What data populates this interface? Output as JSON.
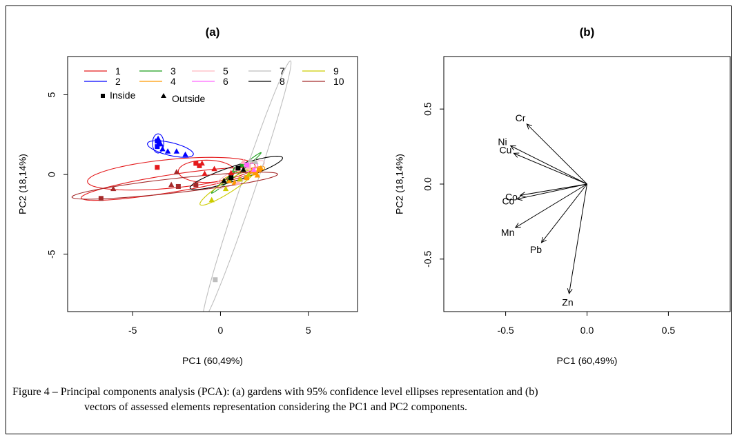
{
  "figure": {
    "caption_line1": "Figure 4 – Principal components analysis (PCA): (a) gardens with 95% confidence level ellipses representation and (b)",
    "caption_line2": "vectors of assessed elements representation considering the PC1 and PC2 components."
  },
  "chart_data": [
    {
      "type": "scatter",
      "title": "(a)",
      "xlabel": "PC1 (60,49%)",
      "ylabel": "PC2 (18,14%)",
      "xlim": [
        -8.7,
        7.8
      ],
      "ylim": [
        -8.6,
        7.4
      ],
      "xticks": [
        -5,
        0,
        5
      ],
      "yticks": [
        -5,
        0,
        5
      ],
      "grid": false,
      "legend_position": "top-left",
      "shape_legend": [
        {
          "label": "Inside",
          "marker": "square"
        },
        {
          "label": "Outside",
          "marker": "triangle"
        }
      ],
      "series": [
        {
          "name": "1",
          "color": "#e41a1c",
          "points": [
            [
              -3.6,
              0.45,
              "s"
            ],
            [
              -1.4,
              0.7,
              "s"
            ],
            [
              -1.2,
              0.55,
              "s"
            ],
            [
              -1.05,
              0.7,
              "t"
            ],
            [
              -0.35,
              0.35,
              "t"
            ],
            [
              -0.9,
              0.05,
              "t"
            ],
            [
              0.6,
              0.1,
              "t"
            ]
          ],
          "ellipses": [
            {
              "cx": -3.0,
              "cy": -0.6,
              "rx": 5.0,
              "ry": 0.55,
              "angle": 10
            },
            {
              "cx": -0.8,
              "cy": 0.2,
              "rx": 1.6,
              "ry": 0.7,
              "angle": 0
            },
            {
              "cx": -2.8,
              "cy": 0.05,
              "rx": 4.8,
              "ry": 0.9,
              "angle": 6
            }
          ]
        },
        {
          "name": "2",
          "color": "#0000ff",
          "points": [
            [
              -3.6,
              2.1,
              "s"
            ],
            [
              -3.5,
              1.95,
              "s"
            ],
            [
              -3.6,
              1.75,
              "s"
            ],
            [
              -3.3,
              1.6,
              "t"
            ],
            [
              -3.4,
              1.9,
              "t"
            ],
            [
              -3.0,
              1.45,
              "t"
            ],
            [
              -2.5,
              1.45,
              "t"
            ],
            [
              -2.0,
              1.25,
              "t"
            ],
            [
              -3.55,
              2.25,
              "t"
            ]
          ],
          "ellipses": [
            {
              "cx": -2.85,
              "cy": 1.6,
              "rx": 1.35,
              "ry": 0.4,
              "angle": -15
            },
            {
              "cx": -3.55,
              "cy": 1.95,
              "rx": 0.32,
              "ry": 0.6,
              "angle": 0
            }
          ]
        },
        {
          "name": "3",
          "color": "#1b9e1b",
          "points": [
            [
              0.8,
              0.3,
              "t"
            ],
            [
              1.2,
              0.6,
              "t"
            ],
            [
              0.5,
              -0.3,
              "t"
            ]
          ],
          "ellipses": [
            {
              "cx": 0.9,
              "cy": 0.1,
              "rx": 1.9,
              "ry": 0.12,
              "angle": 42
            }
          ]
        },
        {
          "name": "4",
          "color": "#ff9900",
          "points": [
            [
              2.2,
              0.3,
              "s"
            ],
            [
              2.0,
              0.1,
              "s"
            ],
            [
              1.5,
              -0.2,
              "s"
            ],
            [
              0.8,
              -0.5,
              "t"
            ],
            [
              2.3,
              0.4,
              "t"
            ],
            [
              1.8,
              0.2,
              "t"
            ],
            [
              0.5,
              -0.4,
              "t"
            ],
            [
              2.1,
              -0.05,
              "t"
            ]
          ],
          "ellipses": [
            {
              "cx": 1.3,
              "cy": 0.0,
              "rx": 1.3,
              "ry": 0.25,
              "angle": 20
            }
          ]
        },
        {
          "name": "5",
          "color": "#ffb6c1",
          "points": [
            [
              1.6,
              0.5,
              "s"
            ],
            [
              1.3,
              0.8,
              "t"
            ],
            [
              0.9,
              0.35,
              "t"
            ],
            [
              1.0,
              -0.5,
              "t"
            ]
          ],
          "ellipses": [
            {
              "cx": 1.1,
              "cy": 0.0,
              "rx": 1.6,
              "ry": 0.4,
              "angle": 30
            }
          ]
        },
        {
          "name": "6",
          "color": "#ff66ff",
          "points": [
            [
              1.5,
              0.6,
              "s"
            ],
            [
              1.9,
              0.3,
              "t"
            ]
          ],
          "ellipses": [
            {
              "cx": 1.7,
              "cy": 0.45,
              "rx": 0.45,
              "ry": 0.2,
              "angle": 20
            }
          ]
        },
        {
          "name": "7",
          "color": "#bebebe",
          "points": [
            [
              -0.3,
              -6.6,
              "s"
            ],
            [
              1.7,
              0.9,
              "t"
            ],
            [
              2.0,
              0.8,
              "t"
            ]
          ],
          "ellipses": [
            {
              "cx": 1.5,
              "cy": -1.0,
              "rx": 8.5,
              "ry": 0.42,
              "angle": 73
            }
          ]
        },
        {
          "name": "8",
          "color": "#000000",
          "points": [
            [
              1.0,
              0.4,
              "s"
            ],
            [
              0.6,
              -0.2,
              "s"
            ],
            [
              1.3,
              0.3,
              "t"
            ],
            [
              0.2,
              -0.4,
              "t"
            ]
          ],
          "ellipses": [
            {
              "cx": 0.9,
              "cy": 0.1,
              "rx": 2.8,
              "ry": 0.45,
              "angle": 20
            }
          ]
        },
        {
          "name": "9",
          "color": "#cccc00",
          "points": [
            [
              -0.5,
              -1.6,
              "t"
            ],
            [
              0.3,
              -0.9,
              "t"
            ],
            [
              1.1,
              -0.3,
              "t"
            ],
            [
              1.6,
              0.0,
              "t"
            ]
          ],
          "ellipses": [
            {
              "cx": 0.4,
              "cy": -0.8,
              "rx": 1.9,
              "ry": 0.35,
              "angle": 35
            }
          ]
        },
        {
          "name": "10",
          "color": "#a52a2a",
          "points": [
            [
              -6.8,
              -1.5,
              "s"
            ],
            [
              -2.4,
              -0.75,
              "s"
            ],
            [
              -1.4,
              -0.65,
              "s"
            ],
            [
              -6.1,
              -0.9,
              "t"
            ],
            [
              -2.8,
              -0.65,
              "t"
            ],
            [
              -2.5,
              0.15,
              "t"
            ]
          ],
          "ellipses": [
            {
              "cx": -2.6,
              "cy": -0.7,
              "rx": 5.9,
              "ry": 0.45,
              "angle": 7
            }
          ]
        }
      ]
    },
    {
      "type": "vector",
      "title": "(b)",
      "xlabel": "PC1 (60,49%)",
      "ylabel": "PC2 (18,14%)",
      "xlim": [
        -0.88,
        0.88
      ],
      "ylim": [
        -0.85,
        0.85
      ],
      "xticks": [
        -0.5,
        0.0,
        0.5
      ],
      "xticklabels": [
        "-0.5",
        "0.0",
        "0.5"
      ],
      "yticks": [
        -0.5,
        0.0,
        0.5
      ],
      "yticklabels": [
        "-0.5",
        "0.0",
        "0.5"
      ],
      "grid": false,
      "vectors": [
        {
          "label": "Cr",
          "x": -0.37,
          "y": 0.4
        },
        {
          "label": "Ni",
          "x": -0.47,
          "y": 0.255
        },
        {
          "label": "Cu",
          "x": -0.45,
          "y": 0.205
        },
        {
          "label": "Co",
          "x": -0.41,
          "y": -0.075
        },
        {
          "label": "Co",
          "x": -0.43,
          "y": -0.1
        },
        {
          "label": "Mn",
          "x": -0.44,
          "y": -0.29
        },
        {
          "label": "Pb",
          "x": -0.28,
          "y": -0.39
        },
        {
          "label": "Zn",
          "x": -0.11,
          "y": -0.73
        }
      ]
    }
  ]
}
